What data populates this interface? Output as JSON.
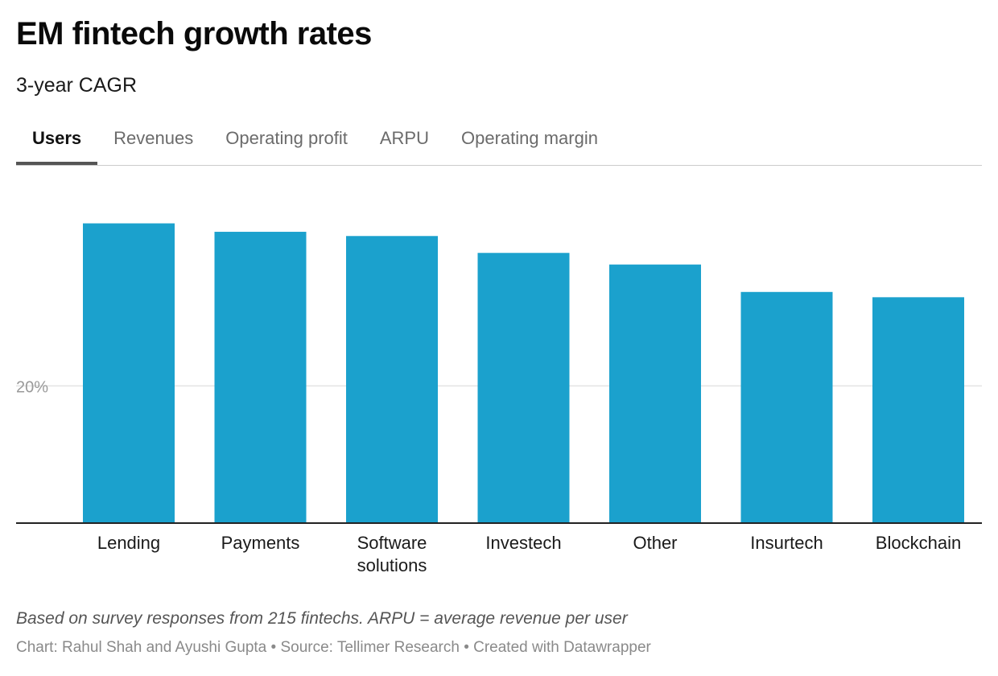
{
  "header": {
    "title": "EM fintech growth rates",
    "subtitle": "3-year CAGR"
  },
  "tabs": [
    {
      "label": "Users",
      "active": true
    },
    {
      "label": "Revenues",
      "active": false
    },
    {
      "label": "Operating profit",
      "active": false
    },
    {
      "label": "ARPU",
      "active": false
    },
    {
      "label": "Operating margin",
      "active": false
    }
  ],
  "chart_data": {
    "type": "bar",
    "categories": [
      [
        "Lending"
      ],
      [
        "Payments"
      ],
      [
        "Software",
        "solutions"
      ],
      [
        "Investech"
      ],
      [
        "Other"
      ],
      [
        "Insurtech"
      ],
      [
        "Blockchain"
      ]
    ],
    "values": [
      35.4,
      34.6,
      34.2,
      32.6,
      31.5,
      28.9,
      28.4
    ],
    "ylim": [
      7,
      37.5
    ],
    "yticks": [
      20
    ],
    "ytick_labels": [
      "20%"
    ],
    "unit": "%",
    "grid": true,
    "bar_color": "#1ba1cd",
    "title": "",
    "xlabel": "",
    "ylabel": ""
  },
  "footer": {
    "note": "Based on survey responses from 215 fintechs. ARPU = average revenue per user",
    "credits": "Chart: Rahul Shah and Ayushi Gupta • Source: Tellimer Research • Created with Datawrapper"
  }
}
